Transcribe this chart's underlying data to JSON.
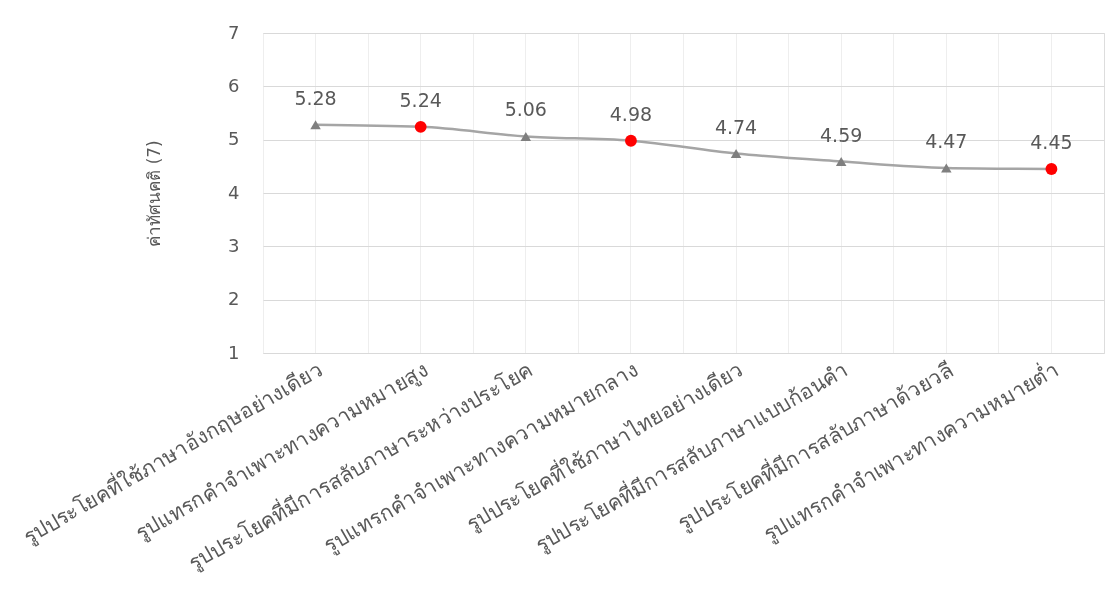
{
  "chart_data": {
    "type": "line",
    "ylabel": "ค่าทัศนคติ (7)",
    "categories": [
      "รูปประโยคที่ใช้ภาษาอังกฤษอย่างเดียว",
      "รูปแทรกคำจำเพาะทางความหมายสูง",
      "รูปประโยคที่มีการสลับภาษาระหว่างประโยค",
      "รูปแทรกคำจำเพาะทางความหมายกลาง",
      "รูปประโยคที่ใช้ภาษาไทยอย่างเดียว",
      "รูปประโยคที่มีการสลับภาษาแบบก้อนคำ",
      "รูปประโยคที่มีการสลับภาษาด้วยวลี",
      "รูปแทรกคำจำเพาะทางความหมายต่ำ"
    ],
    "series": [
      {
        "color": "#a5a5a5",
        "marker": "none",
        "line_style": "solid",
        "values": [
          5.28,
          5.24,
          5.06,
          4.98,
          4.74,
          4.59,
          4.47,
          4.45
        ]
      },
      {
        "type": "scatter",
        "color": "#7f7f7f",
        "marker": "triangle",
        "values": [
          5.28,
          null,
          5.06,
          null,
          4.74,
          4.59,
          4.47,
          null
        ],
        "value_labels": [
          "5.28",
          null,
          "5.06",
          null,
          "4.74",
          "4.59",
          "4.47",
          null
        ]
      },
      {
        "type": "scatter",
        "color": "#ff0000",
        "marker": "circle",
        "values": [
          null,
          5.24,
          null,
          4.98,
          null,
          null,
          null,
          4.45
        ],
        "value_labels": [
          null,
          "5.24",
          null,
          "4.98",
          null,
          null,
          null,
          "4.45"
        ]
      }
    ],
    "ylim": [
      1,
      7
    ],
    "yticks": [
      1,
      2,
      3,
      4,
      5,
      6,
      7
    ],
    "grid": true
  }
}
